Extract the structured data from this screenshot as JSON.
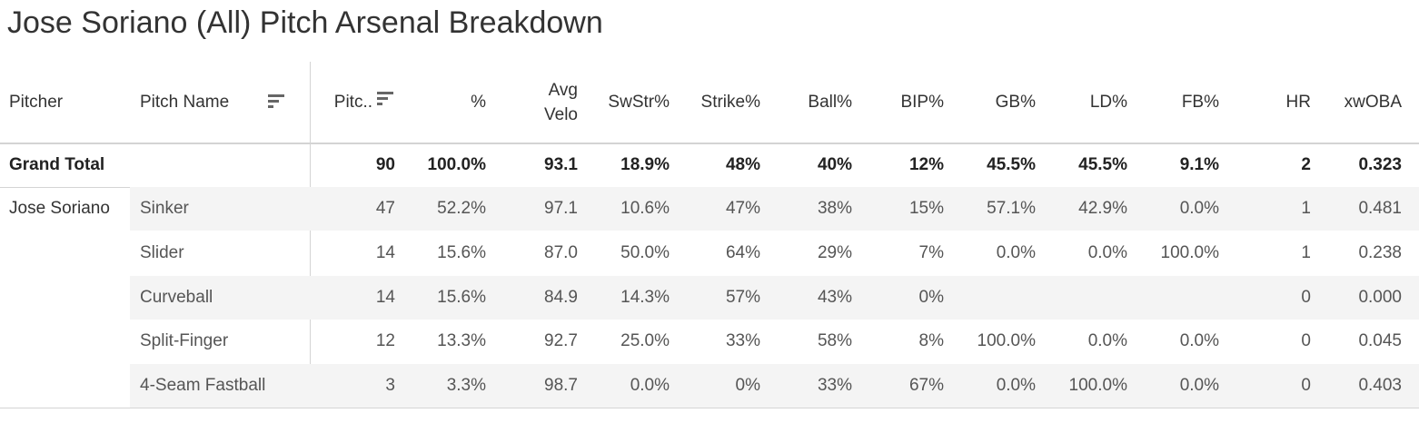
{
  "title": "Jose Soriano (All) Pitch Arsenal Breakdown",
  "table": {
    "headers": [
      "Pitcher",
      "Pitch Name",
      "Pitc..",
      "%",
      "Avg Velo",
      "SwStr%",
      "Strike%",
      "Ball%",
      "BIP%",
      "GB%",
      "LD%",
      "FB%",
      "HR",
      "xwOBA"
    ],
    "rows": [
      [
        "Grand Total",
        null,
        "90",
        "100.0%",
        "93.1",
        "18.9%",
        "48%",
        "40%",
        "12%",
        "45.5%",
        "45.5%",
        "9.1%",
        "2",
        "0.323"
      ],
      [
        "Jose Soriano",
        "Sinker",
        "47",
        "52.2%",
        "97.1",
        "10.6%",
        "47%",
        "38%",
        "15%",
        "57.1%",
        "42.9%",
        "0.0%",
        "1",
        "0.481"
      ],
      [
        null,
        "Slider",
        "14",
        "15.6%",
        "87.0",
        "50.0%",
        "64%",
        "29%",
        "7%",
        "0.0%",
        "0.0%",
        "100.0%",
        "1",
        "0.238"
      ],
      [
        null,
        "Curveball",
        "14",
        "15.6%",
        "84.9",
        "14.3%",
        "57%",
        "43%",
        "0%",
        null,
        null,
        null,
        "0",
        "0.000"
      ],
      [
        null,
        "Split-Finger",
        "12",
        "13.3%",
        "92.7",
        "25.0%",
        "33%",
        "58%",
        "8%",
        "100.0%",
        "0.0%",
        "0.0%",
        "0",
        "0.045"
      ],
      [
        null,
        "4-Seam Fastball",
        "3",
        "3.3%",
        "98.7",
        "0.0%",
        "0%",
        "33%",
        "67%",
        "0.0%",
        "100.0%",
        "0.0%",
        "0",
        "0.403"
      ]
    ]
  }
}
